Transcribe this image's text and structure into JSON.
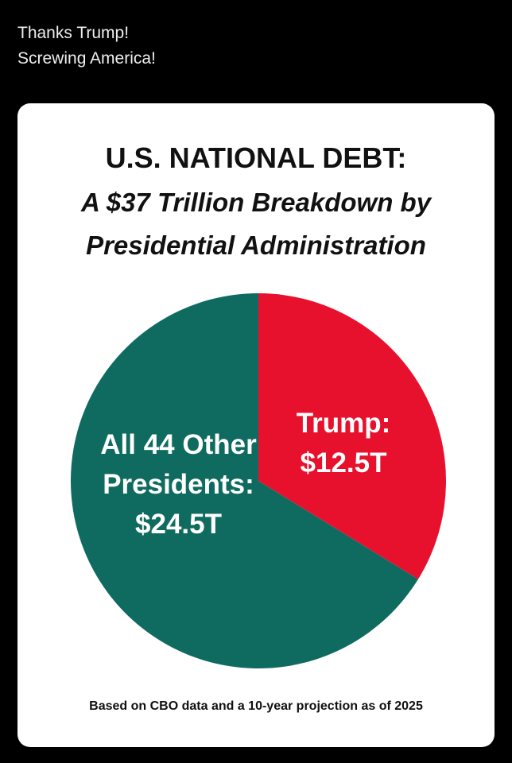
{
  "post": {
    "lines": [
      "Thanks Trump!",
      "Screwing America!"
    ]
  },
  "chart_data": {
    "type": "pie",
    "title": "U.S. NATIONAL DEBT:",
    "subtitle": "A $37 Trillion Breakdown by Presidential Administration",
    "categories": [
      "Trump:",
      "All 44 Other Presidents:"
    ],
    "values": [
      12.5,
      24.5
    ],
    "value_labels": [
      "$12.5T",
      "$24.5T"
    ],
    "colors": [
      "#e8112d",
      "#0f6b5f"
    ],
    "note": "Based on CBO data and a 10-year projection as of 2025"
  }
}
